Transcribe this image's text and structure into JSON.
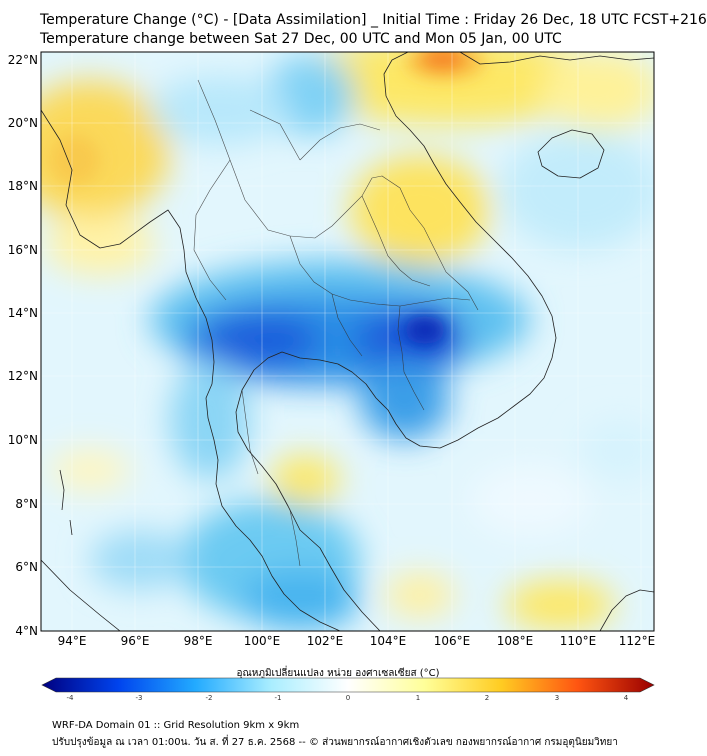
{
  "title": {
    "line1": "Temperature Change (°C) - [Data Assimilation] _ Initial Time : Friday 26 Dec, 18 UTC FCST+216",
    "line2": "Temperature change between Sat 27 Dec, 00 UTC and Mon 05 Jan, 00 UTC"
  },
  "map": {
    "lat_labels": [
      "22°N",
      "20°N",
      "18°N",
      "16°N",
      "14°N",
      "12°N",
      "10°N",
      "8°N",
      "6°N",
      "4°N"
    ],
    "lon_labels": [
      "94°E",
      "96°E",
      "98°E",
      "100°E",
      "102°E",
      "104°E",
      "106°E",
      "108°E",
      "110°E",
      "112°E"
    ]
  },
  "colorbar": {
    "label": "อุณหภูมิเปลี่ยนแปลง หน่วย องศาเซลเซียส (°C)",
    "ticks": [
      "-4",
      "-3",
      "-2",
      "-1",
      "0",
      "1",
      "2",
      "3",
      "4"
    ],
    "colors": [
      "#000080",
      "#0044ee",
      "#22aaff",
      "#aaeeff",
      "#ffffff",
      "#ffff99",
      "#ffcc22",
      "#ff5511",
      "#990000"
    ]
  },
  "footer": {
    "line1": "WRF-DA Domain 01 :: Grid Resolution 9km x 9km",
    "line2": "ปรับปรุงข้อมูล ณ เวลา 01:00น. วัน ส. ที่ 27 ธ.ค. 2568 -- © ส่วนพยากรณ์อากาศเชิงตัวเลข กองพยากรณ์อากาศ กรมอุตุนิยมวิทยา"
  }
}
